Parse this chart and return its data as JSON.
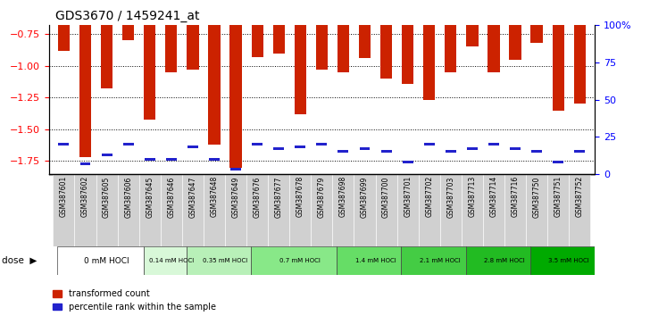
{
  "title": "GDS3670 / 1459241_at",
  "samples": [
    "GSM387601",
    "GSM387602",
    "GSM387605",
    "GSM387606",
    "GSM387645",
    "GSM387646",
    "GSM387647",
    "GSM387648",
    "GSM387649",
    "GSM387676",
    "GSM387677",
    "GSM387678",
    "GSM387679",
    "GSM387698",
    "GSM387699",
    "GSM387700",
    "GSM387701",
    "GSM387702",
    "GSM387703",
    "GSM387713",
    "GSM387714",
    "GSM387716",
    "GSM387750",
    "GSM387751",
    "GSM387752"
  ],
  "red_values": [
    -0.88,
    -1.72,
    -1.18,
    -0.8,
    -1.42,
    -1.05,
    -1.03,
    -1.62,
    -1.8,
    -0.93,
    -0.9,
    -1.38,
    -1.03,
    -1.05,
    -0.94,
    -1.1,
    -1.14,
    -1.27,
    -1.05,
    -0.85,
    -1.05,
    -0.95,
    -0.82,
    -1.35,
    -1.3
  ],
  "blue_pct": [
    20,
    7,
    13,
    20,
    10,
    10,
    18,
    10,
    3,
    20,
    17,
    18,
    20,
    15,
    17,
    15,
    8,
    20,
    15,
    17,
    20,
    17,
    15,
    8,
    15
  ],
  "dose_groups": [
    {
      "label": "0 mM HOCl",
      "start": 0,
      "end": 4,
      "color": "#ffffff"
    },
    {
      "label": "0.14 mM HOCl",
      "start": 4,
      "end": 6,
      "color": "#d8f8d8"
    },
    {
      "label": "0.35 mM HOCl",
      "start": 6,
      "end": 9,
      "color": "#b8f0b8"
    },
    {
      "label": "0.7 mM HOCl",
      "start": 9,
      "end": 13,
      "color": "#88e888"
    },
    {
      "label": "1.4 mM HOCl",
      "start": 13,
      "end": 16,
      "color": "#66dd66"
    },
    {
      "label": "2.1 mM HOCl",
      "start": 16,
      "end": 19,
      "color": "#44cc44"
    },
    {
      "label": "2.8 mM HOCl",
      "start": 19,
      "end": 22,
      "color": "#22bb22"
    },
    {
      "label": "3.5 mM HOCl",
      "start": 22,
      "end": 25,
      "color": "#00aa00"
    }
  ],
  "ylim_left": [
    -1.85,
    -0.68
  ],
  "yticks_left": [
    -1.75,
    -1.5,
    -1.25,
    -1.0,
    -0.75
  ],
  "ylim_right": [
    0,
    100
  ],
  "yticks_right": [
    0,
    25,
    50,
    75,
    100
  ],
  "bar_color": "#cc2200",
  "blue_color": "#2222cc",
  "legend_items": [
    "transformed count",
    "percentile rank within the sample"
  ]
}
